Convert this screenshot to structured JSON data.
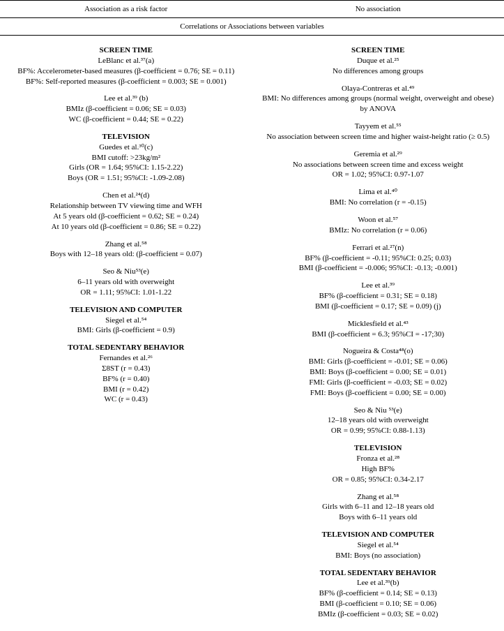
{
  "headers": {
    "col1": "Association as a risk factor",
    "col2": "No association",
    "subheader": "Correlations or Associations between variables"
  },
  "left": {
    "sections": [
      {
        "title": "SCREEN TIME",
        "entries": [
          {
            "lines": [
              "LeBlanc et al.³⁷(a)",
              "BF%: Accelerometer-based measures (β-coefficient =  0.76; SE =  0.11)",
              "BF%: Self-reported measures (β-coefficient =  0.003; SE =  0.001)"
            ]
          },
          {
            "lines": [
              "Lee et al.³⁹ (b)",
              "BMIz (β-coefficient =  0.06; SE =  0.03)",
              "WC (β-coefficient =  0.44; SE =  0.22)"
            ]
          }
        ]
      },
      {
        "title": "TELEVISION",
        "entries": [
          {
            "lines": [
              "Guedes et al.³⁰(c)",
              "BMI cutoff: >23kg/m²",
              "Girls (OR =  1.64; 95%CI: 1.15-2.22)",
              "Boys (OR =  1.51; 95%CI: -1.09-2.08)"
            ]
          },
          {
            "lines": [
              "Chen et al.²⁴(d)",
              "Relationship between TV viewing time and WFH",
              "At 5 years old (β-coefficient =  0.62; SE =  0.24)",
              "At 10 years old (β-coefficient =  0.86; SE =  0.22)"
            ]
          },
          {
            "lines": [
              "Zhang et al.⁵⁸",
              "Boys with 12–18 years old: (β-coefficient =  0.07)"
            ]
          },
          {
            "lines": [
              "Seo & Niu⁵³(e)",
              "6–11 years old with overweight",
              "OR =  1.11; 95%CI: 1.01-1.22"
            ]
          }
        ]
      },
      {
        "title": "TELEVISION AND COMPUTER",
        "entries": [
          {
            "lines": [
              "Siegel et al.⁵⁴",
              "BMI: Girls (β-coefficient =  0.9)"
            ]
          }
        ]
      },
      {
        "title": "TOTAL SEDENTARY BEHAVIOR",
        "entries": [
          {
            "lines": [
              "Fernandes et al.²⁶",
              "Σ8ST (r =  0.43)",
              "BF% (r =  0.40)",
              "BMI (r =  0.42)",
              "WC (r =  0.43)"
            ]
          }
        ]
      }
    ]
  },
  "right": {
    "sections": [
      {
        "title": "SCREEN TIME",
        "entries": [
          {
            "lines": [
              "Duque et al.²⁵",
              "No differences among groups"
            ]
          },
          {
            "lines": [
              "Olaya-Contreras et al.⁴⁹",
              "BMI: No differences among groups (normal weight, overweight and obese) by ANOVA"
            ]
          },
          {
            "lines": [
              "Tayyem et al.⁵⁵",
              "No association between screen time and higher waist-height ratio (≥ 0.5)"
            ]
          },
          {
            "lines": [
              "Geremia et al.²⁹",
              "No associations between screen time and excess weight",
              "OR =  1.02; 95%CI: 0.97-1.07"
            ]
          },
          {
            "lines": [
              "Lima et al.⁴⁰",
              "BMI: No correlation (r =  -0.15)"
            ]
          },
          {
            "lines": [
              "Woon et al.⁵⁷",
              "BMIz: No correlation (r =  0.06)"
            ]
          },
          {
            "lines": [
              "Ferrari et al.²⁷(n)",
              "BF% (β-coefficient = -0.11; 95%CI: 0.25; 0.03)",
              "BMI (β-coefficient = -0.006; 95%CI: -0.13; -0.001)"
            ]
          },
          {
            "lines": [
              "Lee et al.³⁹",
              "BF% (β-coefficient =  0.31; SE =  0.18)",
              "BMI (β-coefficient =  0.17; SE =  0.09) (j)"
            ]
          },
          {
            "lines": [
              "Micklesfield et al.⁴³",
              "BMI (β-coefficient =  6.3; 95%CI = -17;30)"
            ]
          },
          {
            "lines": [
              "Nogueira & Costa⁴⁸(o)",
              "BMI: Girls (β-coefficient =  -0.01; SE =  0.06)",
              "BMI: Boys (β-coefficient =  0.00; SE =  0.01)",
              "FMI: Girls (β-coefficient =  -0.03; SE =  0.02)",
              "FMI: Boys (β-coefficient =  0.00; SE =  0.00)"
            ]
          },
          {
            "lines": [
              "Seo & Niu ⁵³(e)",
              "12–18 years old with overweight",
              "OR =  0.99; 95%CI: 0.88-1.13)"
            ]
          }
        ]
      },
      {
        "title": "TELEVISION",
        "entries": [
          {
            "lines": [
              "Fronza et al.²⁸",
              "High BF%",
              "OR =  0.85; 95%CI: 0.34-2.17"
            ]
          },
          {
            "lines": [
              "Zhang et al.⁵⁸",
              "Girls with 6–11 and 12–18 years old",
              "Boys with 6–11 years old"
            ]
          }
        ]
      },
      {
        "title": "TELEVISION AND COMPUTER",
        "entries": [
          {
            "lines": [
              "Siegel et al.⁵⁴",
              "BMI: Boys (no association)"
            ]
          }
        ]
      },
      {
        "title": "TOTAL SEDENTARY BEHAVIOR",
        "entries": [
          {
            "lines": [
              "Lee et al.³⁹(b)",
              "BF% (β-coefficient =  0.14; SE =  0.13)",
              "BMI (β-coefficient =  0.10; SE =  0.06)",
              "BMIz (β-coefficient =  0.03; SE =  0.02)"
            ]
          }
        ]
      }
    ]
  }
}
